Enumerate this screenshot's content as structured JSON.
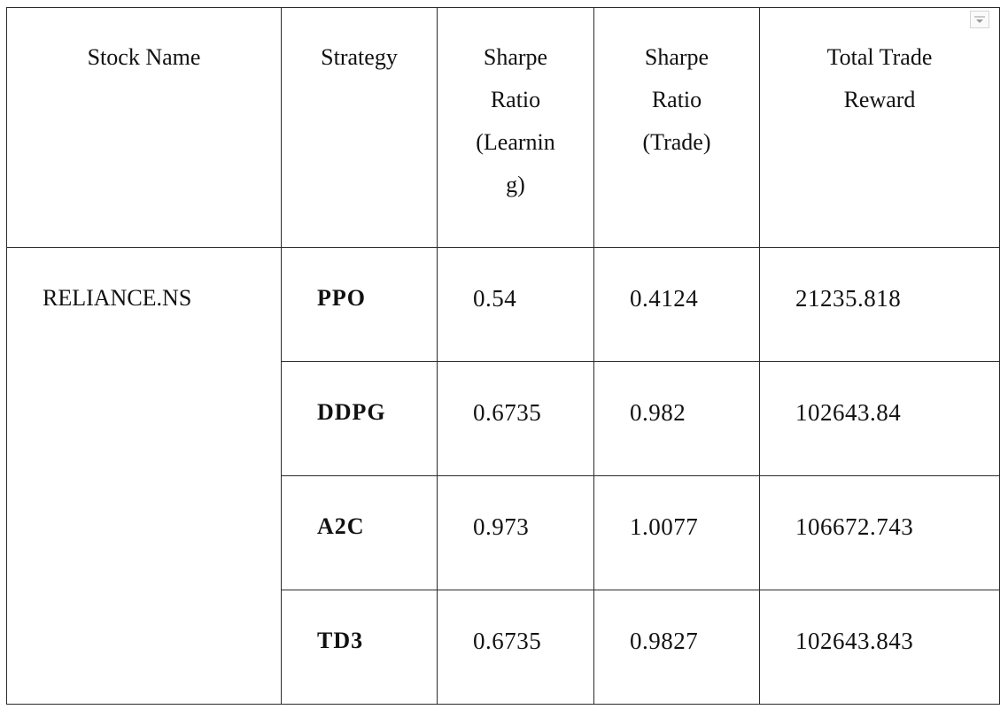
{
  "table": {
    "headers": {
      "stock_name": "Stock Name",
      "strategy": "Strategy",
      "sharpe_learning_line1": "Sharpe",
      "sharpe_learning_line2": "Ratio",
      "sharpe_learning_line3": "(Learnin",
      "sharpe_learning_line4": "g)",
      "sharpe_trade_line1": "Sharpe",
      "sharpe_trade_line2": "Ratio",
      "sharpe_trade_line3": "(Trade)",
      "total_reward_line1": "Total Trade",
      "total_reward_line2": "Reward"
    },
    "stock_name": "RELIANCE.NS",
    "rows": [
      {
        "strategy": "PPO",
        "sharpe_learning": "0.54",
        "sharpe_trade": "0.4124",
        "total_reward": "21235.818"
      },
      {
        "strategy": "DDPG",
        "sharpe_learning": "0.6735",
        "sharpe_trade": "0.982",
        "total_reward": "102643.84"
      },
      {
        "strategy": "A2C",
        "sharpe_learning": "0.973",
        "sharpe_trade": "1.0077",
        "total_reward": "106672.743"
      },
      {
        "strategy": "TD3",
        "sharpe_learning": "0.6735",
        "sharpe_trade": "0.9827",
        "total_reward": "102643.843"
      }
    ]
  },
  "icons": {
    "dropdown": "chevron-down-icon"
  }
}
